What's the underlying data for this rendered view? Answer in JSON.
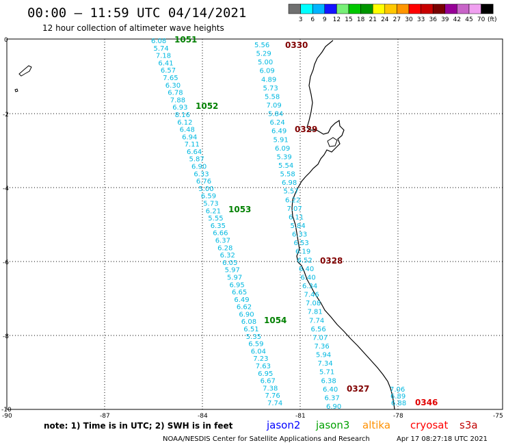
{
  "header": {
    "title": "00:00 – 11:59 UTC 04/14/2021",
    "subtitle": "12 hour collection of altimeter wave heights"
  },
  "legend": {
    "labels": [
      "3",
      "6",
      "9",
      "12",
      "15",
      "18",
      "21",
      "24",
      "27",
      "30",
      "33",
      "36",
      "39",
      "42",
      "45",
      "70"
    ],
    "unit": "(ft)",
    "colors": [
      "#707070",
      "#00ffff",
      "#00b4ff",
      "#1414ff",
      "#78f078",
      "#00c800",
      "#009600",
      "#ffff00",
      "#ffc800",
      "#ff9600",
      "#ff0000",
      "#c80000",
      "#780000",
      "#960096",
      "#c864c8",
      "#f0a0f0",
      "#000000"
    ]
  },
  "axes": {
    "x_ticks": [
      "-90",
      "-87",
      "-84",
      "-81",
      "-78",
      "-75"
    ],
    "y_ticks": [
      "0",
      "-2",
      "-4",
      "-6",
      "-8",
      "-10"
    ]
  },
  "passes": [
    {
      "id": "1051",
      "color": "#008000"
    },
    {
      "id": "1052",
      "color": "#008000"
    },
    {
      "id": "1053",
      "color": "#008000"
    },
    {
      "id": "1054",
      "color": "#008000"
    },
    {
      "id": "0330",
      "color": "#800000"
    },
    {
      "id": "0329",
      "color": "#800000"
    },
    {
      "id": "0328",
      "color": "#800000"
    },
    {
      "id": "0327",
      "color": "#800000"
    },
    {
      "id": "0346",
      "color": "#e00000"
    }
  ],
  "tracks": {
    "jason3_west": [
      "6.08",
      "5.74",
      "7.18",
      "6.41",
      "6.57",
      "7.65",
      "6.30",
      "6.78",
      "7.88",
      "6.93",
      "8.16",
      "6.12",
      "6.48",
      "6.94",
      "7.11",
      "6.64",
      "5.87",
      "6.90",
      "6.33",
      "6.76",
      "5.00",
      "6.59",
      "5.73",
      "6.21",
      "5.55",
      "6.35",
      "6.66",
      "6.37",
      "6.28",
      "6.32",
      "6.05",
      "5.97",
      "5.97",
      "6.95",
      "6.65",
      "6.49",
      "6.62",
      "6.90",
      "6.08",
      "6.51",
      "5.35",
      "6.59",
      "6.04",
      "7.23",
      "7.63",
      "6.95",
      "6.67",
      "7.38",
      "7.76",
      "7.74"
    ],
    "jason2_east": [
      "5.56",
      "5.29",
      "5.00",
      "6.09",
      "4.89",
      "5.73",
      "5.58",
      "7.09",
      "5.84",
      "6.24",
      "6.49",
      "5.91",
      "6.09",
      "5.39",
      "5.54",
      "5.58",
      "6.98",
      "5.57",
      "6.22",
      "7.07",
      "6.11",
      "5.84",
      "6.33",
      "6.53",
      "6.19",
      "6.52",
      "6.40",
      "6.40",
      "6.34",
      "7.46",
      "7.08",
      "7.81",
      "7.74",
      "6.56",
      "7.07",
      "7.36",
      "5.94",
      "7.34",
      "5.71",
      "6.38",
      "6.40",
      "6.37",
      "6.90"
    ],
    "cryosat": [
      "7.06",
      "6.89",
      "6.88"
    ]
  },
  "footer": {
    "note": "note:  1) Time is in UTC;  2) SWH is in feet",
    "satellites": [
      {
        "name": "jason2",
        "color": "#0000ff"
      },
      {
        "name": "jason3",
        "color": "#00a000"
      },
      {
        "name": "altika",
        "color": "#ff9000"
      },
      {
        "name": "cryosat",
        "color": "#ff0000"
      },
      {
        "name": "s3a",
        "color": "#c00000"
      }
    ],
    "credit": "NOAA/NESDIS Center for Satellite Applications and Research",
    "timestamp": "Apr 17 08:27:18 UTC 2021"
  }
}
